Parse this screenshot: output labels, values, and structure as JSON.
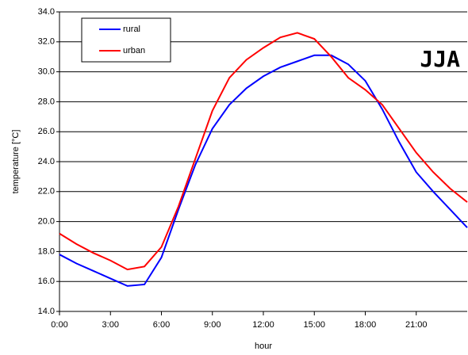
{
  "chart_data": {
    "type": "line",
    "annotation": "JJA",
    "x_label": "hour",
    "y_label": "temperature [°C]",
    "x": [
      0,
      1,
      2,
      3,
      4,
      5,
      6,
      7,
      8,
      9,
      10,
      11,
      12,
      13,
      14,
      15,
      16,
      17,
      18,
      19,
      20,
      21,
      22,
      23,
      24
    ],
    "series": [
      {
        "name": "rural",
        "color": "#0000ff",
        "values": [
          17.8,
          17.2,
          16.7,
          16.2,
          15.7,
          15.8,
          17.6,
          20.8,
          23.8,
          26.2,
          27.8,
          28.9,
          29.7,
          30.3,
          30.7,
          31.1,
          31.1,
          30.5,
          29.4,
          27.5,
          25.3,
          23.3,
          22.0,
          20.8,
          19.6
        ]
      },
      {
        "name": "urban",
        "color": "#ff0000",
        "values": [
          19.2,
          18.5,
          17.9,
          17.4,
          16.8,
          17.0,
          18.3,
          21.0,
          24.2,
          27.4,
          29.6,
          30.8,
          31.6,
          32.3,
          32.6,
          32.2,
          31.0,
          29.6,
          28.8,
          27.8,
          26.2,
          24.6,
          23.3,
          22.2,
          21.3
        ]
      }
    ],
    "xlim": [
      0,
      24
    ],
    "xticks": [
      {
        "value": 0,
        "label": "0:00"
      },
      {
        "value": 3,
        "label": "3:00"
      },
      {
        "value": 6,
        "label": "6:00"
      },
      {
        "value": 9,
        "label": "9:00"
      },
      {
        "value": 12,
        "label": "12:00"
      },
      {
        "value": 15,
        "label": "15:00"
      },
      {
        "value": 18,
        "label": "18:00"
      },
      {
        "value": 21,
        "label": "21:00"
      }
    ],
    "ylim": [
      14,
      34
    ],
    "yticks": [
      {
        "value": 14,
        "label": "14.0"
      },
      {
        "value": 16,
        "label": "16.0"
      },
      {
        "value": 18,
        "label": "18.0"
      },
      {
        "value": 20,
        "label": "20.0"
      },
      {
        "value": 22,
        "label": "22.0"
      },
      {
        "value": 24,
        "label": "24.0"
      },
      {
        "value": 26,
        "label": "26.0"
      },
      {
        "value": 28,
        "label": "28.0"
      },
      {
        "value": 30,
        "label": "30.0"
      },
      {
        "value": 32,
        "label": "32.0"
      },
      {
        "value": 34,
        "label": "34.0"
      }
    ],
    "grid": true,
    "legend": "top-left"
  }
}
